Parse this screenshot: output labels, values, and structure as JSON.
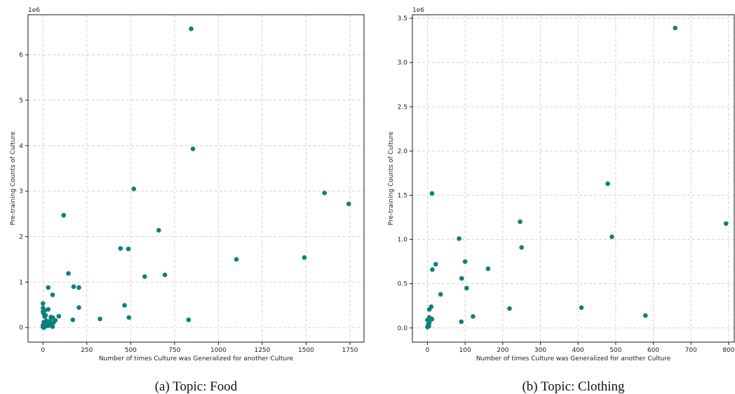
{
  "chart_data": [
    {
      "type": "scatter",
      "title": "",
      "caption": "(a) Topic: Food",
      "xlabel": "Number of times Culture was Generalized for another Culture",
      "ylabel": "Pre-training Counts of Culture",
      "y_multiplier_label": "1e6",
      "xlim": [
        -85,
        1830
      ],
      "ylim": [
        -0.32,
        6.88
      ],
      "x_ticks": [
        0,
        250,
        500,
        750,
        1000,
        1250,
        1500,
        1750
      ],
      "y_ticks": [
        0,
        1,
        2,
        3,
        4,
        5,
        6
      ],
      "grid": true,
      "marker_color": "#0b8080",
      "points": [
        [
          845,
          6.57
        ],
        [
          855,
          3.93
        ],
        [
          518,
          3.05
        ],
        [
          1605,
          2.96
        ],
        [
          1743,
          2.72
        ],
        [
          118,
          2.47
        ],
        [
          660,
          2.14
        ],
        [
          442,
          1.74
        ],
        [
          487,
          1.73
        ],
        [
          1103,
          1.5
        ],
        [
          1490,
          1.54
        ],
        [
          145,
          1.19
        ],
        [
          695,
          1.16
        ],
        [
          580,
          1.12
        ],
        [
          175,
          0.9
        ],
        [
          205,
          0.88
        ],
        [
          30,
          0.88
        ],
        [
          55,
          0.72
        ],
        [
          465,
          0.49
        ],
        [
          0,
          0.53
        ],
        [
          0,
          0.43
        ],
        [
          205,
          0.44
        ],
        [
          30,
          0.4
        ],
        [
          10,
          0.38
        ],
        [
          0,
          0.35
        ],
        [
          5,
          0.3
        ],
        [
          15,
          0.27
        ],
        [
          90,
          0.25
        ],
        [
          10,
          0.24
        ],
        [
          45,
          0.23
        ],
        [
          490,
          0.22
        ],
        [
          55,
          0.22
        ],
        [
          325,
          0.19
        ],
        [
          170,
          0.17
        ],
        [
          830,
          0.17
        ],
        [
          70,
          0.16
        ],
        [
          20,
          0.15
        ],
        [
          40,
          0.14
        ],
        [
          5,
          0.12
        ],
        [
          60,
          0.11
        ],
        [
          25,
          0.1
        ],
        [
          35,
          0.09
        ],
        [
          50,
          0.07
        ],
        [
          10,
          0.06
        ],
        [
          0,
          0.05
        ],
        [
          30,
          0.04
        ],
        [
          15,
          0.03
        ],
        [
          55,
          0.02
        ],
        [
          0,
          0.01
        ],
        [
          5,
          0.0
        ]
      ]
    },
    {
      "type": "scatter",
      "title": "",
      "caption": "(b) Topic: Clothing",
      "xlabel": "Number of times Culture was Generalized for another Culture",
      "ylabel": "Pre-training Counts of Culture",
      "y_multiplier_label": "1e6",
      "xlim": [
        -40,
        815
      ],
      "ylim": [
        -0.16,
        3.54
      ],
      "x_ticks": [
        0,
        100,
        200,
        300,
        400,
        500,
        600,
        700,
        800
      ],
      "y_ticks": [
        0.0,
        0.5,
        1.0,
        1.5,
        2.0,
        2.5,
        3.0,
        3.5
      ],
      "y_tick_labels": [
        "0.0",
        "0.5",
        "1.0",
        "1.5",
        "2.0",
        "2.5",
        "3.0",
        "3.5"
      ],
      "grid": true,
      "marker_color": "#0b8080",
      "points": [
        [
          658,
          3.39
        ],
        [
          479,
          1.63
        ],
        [
          12,
          1.52
        ],
        [
          246,
          1.2
        ],
        [
          793,
          1.18
        ],
        [
          490,
          1.03
        ],
        [
          84,
          1.01
        ],
        [
          250,
          0.91
        ],
        [
          100,
          0.75
        ],
        [
          22,
          0.72
        ],
        [
          161,
          0.67
        ],
        [
          13,
          0.66
        ],
        [
          91,
          0.56
        ],
        [
          104,
          0.45
        ],
        [
          35,
          0.38
        ],
        [
          10,
          0.24
        ],
        [
          5,
          0.21
        ],
        [
          409,
          0.23
        ],
        [
          218,
          0.22
        ],
        [
          579,
          0.14
        ],
        [
          121,
          0.13
        ],
        [
          5,
          0.12
        ],
        [
          12,
          0.1
        ],
        [
          0,
          0.09
        ],
        [
          90,
          0.07
        ],
        [
          5,
          0.06
        ],
        [
          2,
          0.04
        ],
        [
          4,
          0.02
        ],
        [
          0,
          0.01
        ]
      ]
    }
  ]
}
